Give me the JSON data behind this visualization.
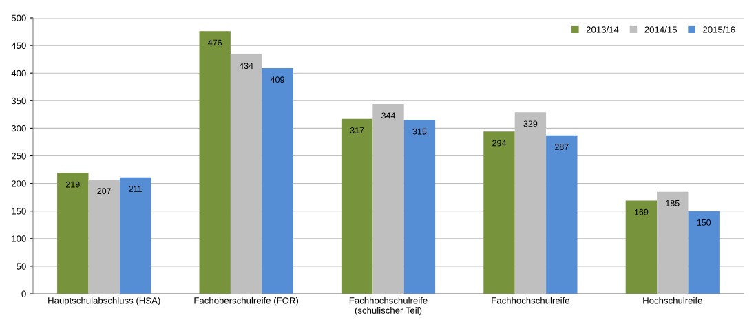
{
  "chart_data": {
    "type": "bar",
    "categories": [
      "Hauptschulabschluss (HSA)",
      "Fachoberschulreife (FOR)",
      "Fachhochschulreife\n(schulischer Teil)",
      "Fachhochschulreife",
      "Hochschulreife"
    ],
    "series": [
      {
        "name": "2013/14",
        "color": "#77933c",
        "values": [
          219,
          476,
          317,
          294,
          169
        ]
      },
      {
        "name": "2014/15",
        "color": "#bfbfbf",
        "values": [
          207,
          434,
          344,
          329,
          185
        ]
      },
      {
        "name": "2015/16",
        "color": "#558ed5",
        "values": [
          211,
          409,
          315,
          287,
          150
        ]
      }
    ],
    "ylim": [
      0,
      500
    ],
    "yticks": [
      0,
      50,
      100,
      150,
      200,
      250,
      300,
      350,
      400,
      450,
      500
    ],
    "grid": "y",
    "legend": "top right",
    "data_labels": true
  }
}
